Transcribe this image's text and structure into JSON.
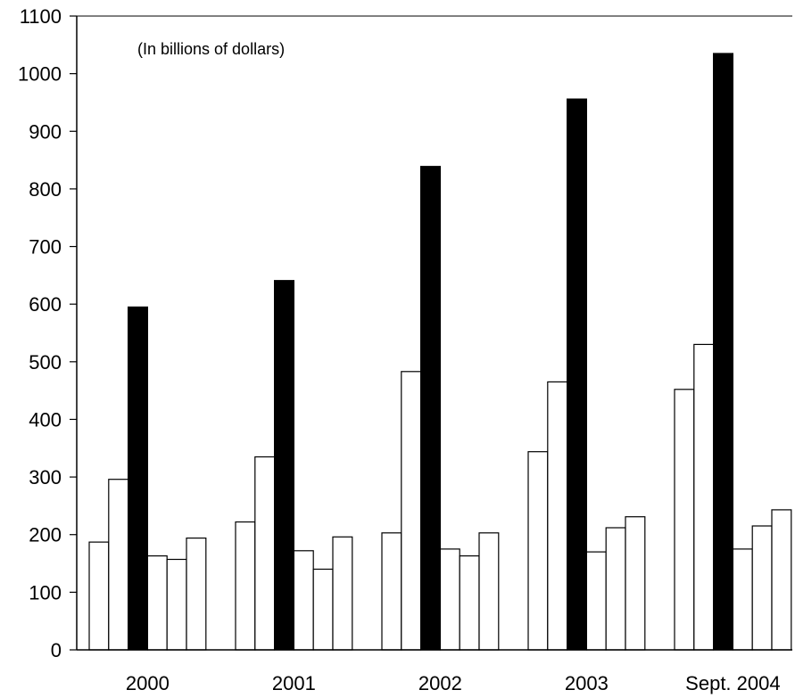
{
  "chart_data": {
    "type": "bar",
    "annotation": "(In billions of dollars)",
    "categories": [
      "2000",
      "2001",
      "2002",
      "2003",
      "Sept. 2004"
    ],
    "ylim": [
      0,
      1100
    ],
    "yticks": [
      0,
      100,
      200,
      300,
      400,
      500,
      600,
      700,
      800,
      900,
      1000,
      1100
    ],
    "grid": false,
    "legend": "none",
    "series": [
      {
        "fill": "#ffffff",
        "values": [
          187,
          222,
          203,
          344,
          452
        ]
      },
      {
        "fill": "#ffffff",
        "values": [
          296,
          335,
          483,
          465,
          530
        ]
      },
      {
        "fill": "#000000",
        "values": [
          595,
          641,
          839,
          956,
          1035
        ]
      },
      {
        "fill": "#ffffff",
        "values": [
          163,
          172,
          175,
          170,
          175
        ]
      },
      {
        "fill": "#ffffff",
        "values": [
          157,
          140,
          163,
          212,
          215
        ]
      },
      {
        "fill": "#ffffff",
        "values": [
          194,
          196,
          203,
          231,
          243
        ]
      }
    ]
  }
}
